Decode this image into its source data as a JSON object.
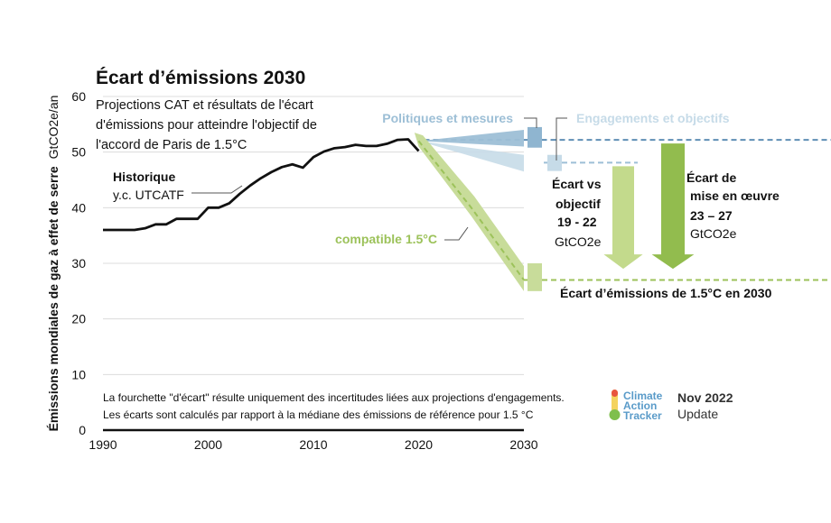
{
  "chart_data": {
    "type": "line",
    "title": "Écart d’émissions 2030",
    "subtitle_lines": [
      "Projections CAT et résultats de l'écart",
      "d'émissions  pour atteindre l'objectif de",
      "l'accord de Paris de 1.5°C"
    ],
    "ylabel": "Émissions mondiales de gaz à effet de serre",
    "ylabel_unit": "GtCO2e/an",
    "xlim": [
      1990,
      2030
    ],
    "ylim": [
      0,
      60
    ],
    "x_ticks": [
      "1990",
      "2000",
      "2010",
      "2020",
      "2030"
    ],
    "y_ticks": [
      "0",
      "10",
      "20",
      "30",
      "40",
      "50",
      "60"
    ],
    "grid": true,
    "series": [
      {
        "name": "Historique",
        "x": [
          1990,
          1991,
          1992,
          1993,
          1994,
          1995,
          1996,
          1997,
          1998,
          1999,
          2000,
          2001,
          2002,
          2003,
          2004,
          2005,
          2006,
          2007,
          2008,
          2009,
          2010,
          2011,
          2012,
          2013,
          2014,
          2015,
          2016,
          2017,
          2018,
          2019,
          2020
        ],
        "values": [
          36,
          36,
          36,
          36,
          36.3,
          37,
          37,
          38,
          38,
          38,
          40,
          40,
          40.8,
          42.5,
          44,
          45.3,
          46.4,
          47.3,
          47.8,
          47.2,
          49.1,
          50.1,
          50.7,
          50.9,
          51.3,
          51.1,
          51.1,
          51.5,
          52.2,
          52.3,
          50.2
        ]
      }
    ],
    "projections": {
      "policies_and_action": {
        "name": "Politiques et mesures",
        "x": [
          2020,
          2030
        ],
        "upper": [
          52,
          54
        ],
        "lower": [
          52,
          51
        ],
        "median_2030": 52.2
      },
      "pledges_and_targets": {
        "name": "Engagements et objectifs",
        "x": [
          2020,
          2030
        ],
        "upper": [
          52,
          49.5
        ],
        "lower": [
          52,
          46.5
        ],
        "median_2030": 48.1
      },
      "compatible_1_5": {
        "name": "compatible 1.5°C",
        "x": [
          2020,
          2025,
          2030
        ],
        "values": [
          52,
          40,
          27
        ],
        "band_2030": [
          25,
          30
        ]
      }
    },
    "annotations": {
      "historique": [
        "Historique",
        "y.c. UTCATF"
      ],
      "gap_targets": [
        "Écart vs",
        "objectif",
        "19 - 22",
        "GtCO2e"
      ],
      "gap_implementation": [
        "Écart de",
        "mise en œuvre",
        "23 – 27",
        "GtCO2e"
      ],
      "gap_1_5": "Écart d’émissions de 1.5°C en 2030"
    },
    "footnotes": [
      "La fourchette \"d'écart\" résulte uniquement des incertitudes liées aux projections d'engagements.",
      "Les écarts sont calculés par rapport à la médiane des émissions de référence pour 1.5 °C"
    ],
    "colors": {
      "historical": "#111111",
      "policies": "#9dbfd6",
      "policies_dark": "#5f8fb5",
      "pledges": "#c6dbe8",
      "green": "#9cc25a",
      "green_light": "#c8dc9a",
      "green_arrow_light": "#c3da8c",
      "green_arrow_dark": "#92bc4e"
    }
  },
  "brand": {
    "lines": [
      "Climate",
      "Action",
      "Tracker"
    ],
    "update_date": "Nov 2022",
    "update_label": "Update"
  }
}
